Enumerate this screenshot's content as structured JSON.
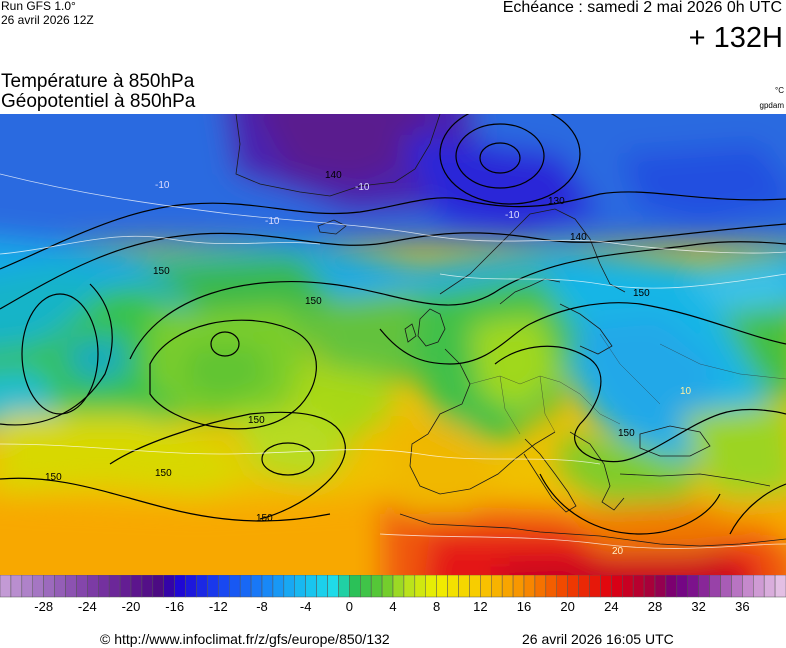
{
  "header": {
    "run_label": "Run GFS 1.0°",
    "run_date": "26 avril 2026 12Z",
    "echeance": "Echéance : samedi 2 mai 2026 0h UTC",
    "horizon": "+ 132H"
  },
  "parameters": {
    "line1": "Température à 850hPa",
    "line2": "Géopotentiel à 850hPa",
    "unit_temperature": "°C",
    "unit_geopotential": "gpdam"
  },
  "map": {
    "region": "europe",
    "contour_labels": [
      {
        "text": "150",
        "color": "#000000"
      },
      {
        "text": "150",
        "color": "#000000"
      },
      {
        "text": "150",
        "color": "#000000"
      },
      {
        "text": "150",
        "color": "#000000"
      },
      {
        "text": "150",
        "color": "#000000"
      },
      {
        "text": "150",
        "color": "#000000"
      },
      {
        "text": "150",
        "color": "#000000"
      },
      {
        "text": "150",
        "color": "#000000"
      },
      {
        "text": "140",
        "color": "#000000"
      },
      {
        "text": "140",
        "color": "#000000"
      },
      {
        "text": "130",
        "color": "#000000"
      },
      {
        "text": "-10",
        "color": "#dcdcff"
      },
      {
        "text": "-10",
        "color": "#dcdcff"
      },
      {
        "text": "-10",
        "color": "#dcdcff"
      },
      {
        "text": "-10",
        "color": "#dcdcff"
      },
      {
        "text": "10",
        "color": "#fff0a0"
      },
      {
        "text": "20",
        "color": "#fff0c8"
      }
    ]
  },
  "colorbar": {
    "min": -32,
    "max": 40,
    "step": 1,
    "tick_labels": [
      "-28",
      "-24",
      "-20",
      "-16",
      "-12",
      "-8",
      "-4",
      "0",
      "4",
      "8",
      "12",
      "16",
      "20",
      "24",
      "28",
      "32",
      "36"
    ]
  },
  "footer": {
    "source": "© http://www.infoclimat.fr/z/gfs/europe/850/132",
    "generated": "26 avril 2026 16:05 UTC"
  }
}
